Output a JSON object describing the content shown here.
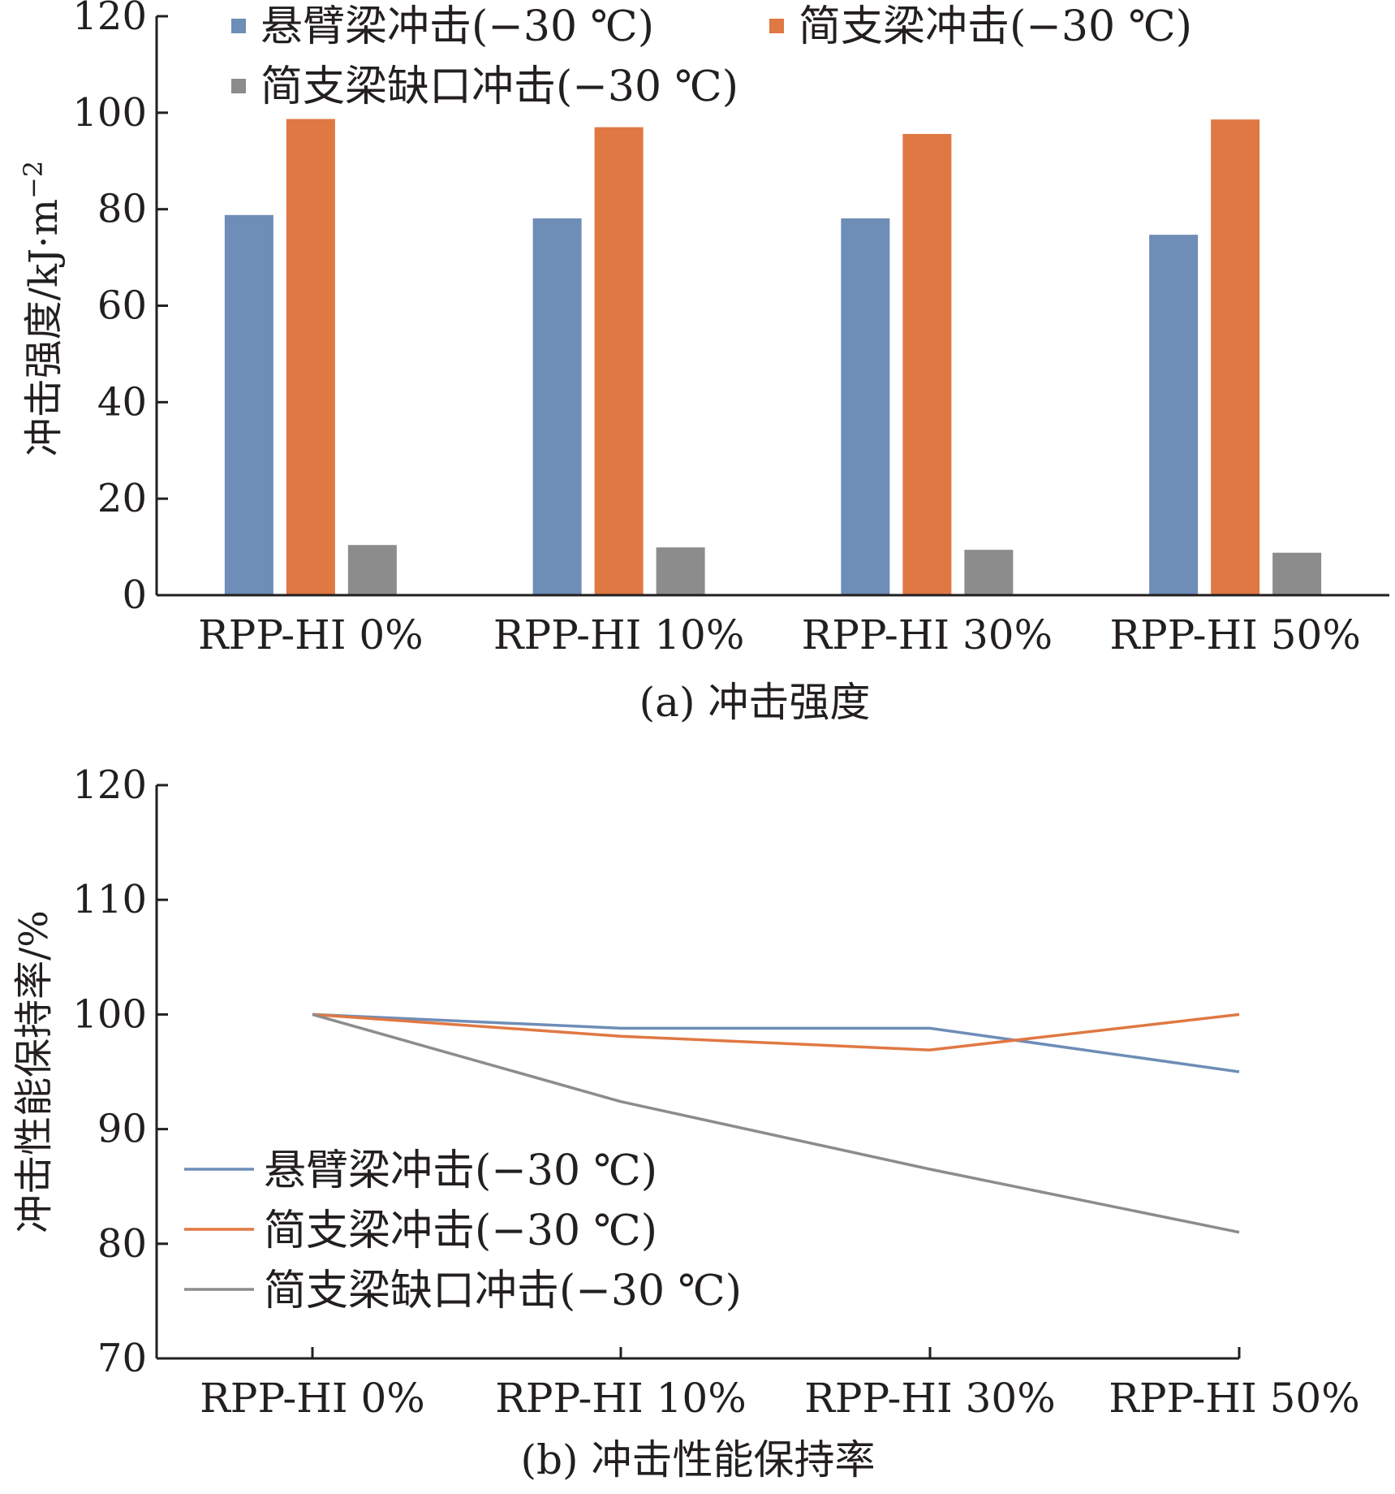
{
  "chart_data": [
    {
      "type": "bar",
      "caption": "(a) 冲击强度",
      "ylabel": "冲击强度/kJ·m",
      "ylabel_sup": "−2",
      "ylim": [
        0,
        120
      ],
      "yticks": [
        "0",
        "20",
        "40",
        "60",
        "80",
        "100",
        "120"
      ],
      "categories": [
        "RPP-HI 0%",
        "RPP-HI 10%",
        "RPP-HI 30%",
        "RPP-HI 50%"
      ],
      "legend_position": "top",
      "grid": false,
      "series": [
        {
          "name": "悬臂梁冲击(−30 ℃)",
          "color": "#6e8db7",
          "values": [
            78.8,
            78.1,
            78.1,
            74.7
          ]
        },
        {
          "name": "简支梁冲击(−30 ℃)",
          "color": "#e07843",
          "values": [
            98.7,
            97.0,
            95.6,
            98.6
          ]
        },
        {
          "name": "简支梁缺口冲击(−30 ℃)",
          "color": "#8c8c8c",
          "values": [
            10.4,
            9.9,
            9.4,
            8.8
          ]
        }
      ]
    },
    {
      "type": "line",
      "caption": "(b) 冲击性能保持率",
      "ylabel": "冲击性能保持率/%",
      "ylim": [
        70,
        120
      ],
      "yticks": [
        "70",
        "80",
        "90",
        "100",
        "110",
        "120"
      ],
      "categories": [
        "RPP-HI 0%",
        "RPP-HI 10%",
        "RPP-HI 30%",
        "RPP-HI 50%"
      ],
      "legend_position": "lower-left",
      "grid": false,
      "series": [
        {
          "name": "悬臂梁冲击(−30 ℃)",
          "color": "#6e8db7",
          "values": [
            100,
            98.8,
            98.8,
            95.0
          ]
        },
        {
          "name": "简支梁冲击(−30 ℃)",
          "color": "#e07843",
          "values": [
            100,
            98.1,
            96.9,
            100
          ]
        },
        {
          "name": "简支梁缺口冲击(−30 ℃)",
          "color": "#8c8c8c",
          "values": [
            100,
            92.4,
            86.5,
            81.0
          ]
        }
      ]
    }
  ]
}
